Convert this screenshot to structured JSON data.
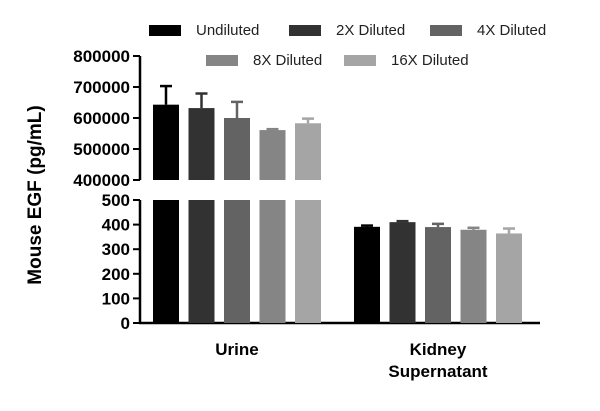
{
  "chart_data": {
    "type": "bar",
    "title": "",
    "xlabel": "",
    "ylabel": "Mouse EGF (pg/mL)",
    "axis_break": true,
    "lower_segment": {
      "ylim": [
        0,
        500
      ],
      "ticks": [
        "0",
        "100",
        "200",
        "300",
        "400",
        "500"
      ],
      "tick_values": [
        0,
        100,
        200,
        300,
        400,
        500
      ]
    },
    "upper_segment": {
      "ylim": [
        400000,
        800000
      ],
      "ticks": [
        "400000",
        "500000",
        "600000",
        "700000",
        "800000"
      ],
      "tick_values": [
        400000,
        500000,
        600000,
        700000,
        800000
      ]
    },
    "categories": [
      {
        "lines": [
          "Urine"
        ]
      },
      {
        "lines": [
          "Kidney",
          "Supernatant"
        ]
      }
    ],
    "series": [
      {
        "name": "Undiluted",
        "color": "#000000",
        "values": [
          643000,
          391
        ],
        "errors": [
          60000,
          5
        ]
      },
      {
        "name": "2X Diluted",
        "color": "#323232",
        "values": [
          632000,
          410
        ],
        "errors": [
          47000,
          4
        ]
      },
      {
        "name": "4X Diluted",
        "color": "#636363",
        "values": [
          600000,
          390
        ],
        "errors": [
          52000,
          13
        ]
      },
      {
        "name": "8X Diluted",
        "color": "#858585",
        "values": [
          561000,
          379
        ],
        "errors": [
          3000,
          8
        ]
      },
      {
        "name": "16X Diluted",
        "color": "#a5a5a5",
        "values": [
          583000,
          364
        ],
        "errors": [
          15000,
          20
        ]
      }
    ],
    "legend_position": "top"
  }
}
